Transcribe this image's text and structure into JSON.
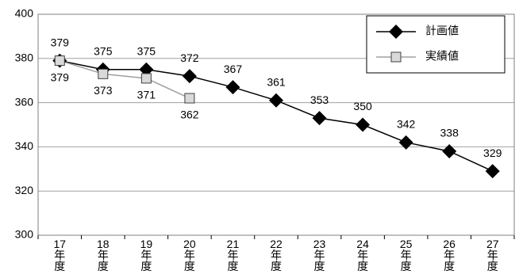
{
  "chart_data": {
    "type": "line",
    "categories": [
      "17年度",
      "18年度",
      "19年度",
      "20年度",
      "21年度",
      "22年度",
      "23年度",
      "24年度",
      "25年度",
      "26年度",
      "27年度"
    ],
    "series": [
      {
        "name": "計画値",
        "color": "#000000",
        "marker": "diamond",
        "values": [
          379,
          375,
          375,
          372,
          367,
          361,
          353,
          350,
          342,
          338,
          329
        ]
      },
      {
        "name": "実績値",
        "color": "#808080",
        "marker": "square",
        "values": [
          379,
          373,
          371,
          362,
          null,
          null,
          null,
          null,
          null,
          null,
          null
        ]
      }
    ],
    "ylim": [
      300,
      400
    ],
    "yticks": [
      300,
      320,
      340,
      360,
      380,
      400
    ],
    "grid": true,
    "legend": "top-right"
  }
}
